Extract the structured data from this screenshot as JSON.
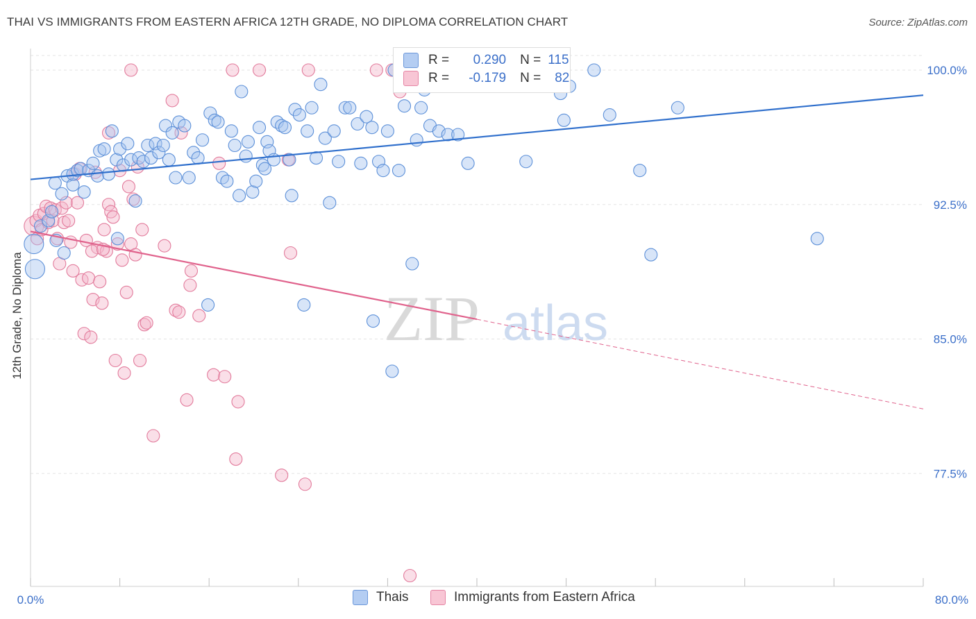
{
  "title": "THAI VS IMMIGRANTS FROM EASTERN AFRICA 12TH GRADE, NO DIPLOMA CORRELATION CHART",
  "source": "Source: ZipAtlas.com",
  "watermark": {
    "zip": "ZIP",
    "atlas": "atlas"
  },
  "legend": {
    "r_label": "R =",
    "n_label": "N =",
    "series": [
      {
        "name": "Thais",
        "r": "0.290",
        "n": "115",
        "fill": "#a9c6ef",
        "stroke": "#5b8fd8"
      },
      {
        "name": "Immigrants from Eastern Africa",
        "r": "-0.179",
        "n": "82",
        "fill": "#f5b8cb",
        "stroke": "#e27a9b"
      }
    ]
  },
  "colors": {
    "blue_line": "#2f6fcc",
    "pink_line": "#e0628c",
    "tick_label": "#3b6fc9",
    "grid": "#e3e3e3"
  },
  "chart_data": {
    "type": "scatter",
    "title": "THAI VS IMMIGRANTS FROM EASTERN AFRICA 12TH GRADE, NO DIPLOMA CORRELATION CHART",
    "xlabel": "",
    "ylabel": "12th Grade, No Diploma",
    "xlim": [
      0,
      80
    ],
    "ylim": [
      71.2,
      101.2
    ],
    "x_tick_labels": [
      "0.0%",
      "80.0%"
    ],
    "y_ticks": [
      77.5,
      85.0,
      92.5,
      100.0
    ],
    "y_tick_labels": [
      "77.5%",
      "85.0%",
      "92.5%",
      "100.0%"
    ],
    "grid": true,
    "legend_position": "top-center",
    "series": [
      {
        "name": "Thais",
        "trend": {
          "x": [
            0,
            80
          ],
          "y": [
            93.9,
            98.6
          ]
        },
        "points": [
          [
            0.3,
            90.3
          ],
          [
            0.4,
            88.9
          ],
          [
            0.9,
            91.3
          ],
          [
            1.6,
            91.6
          ],
          [
            1.9,
            92.1
          ],
          [
            2.2,
            93.7
          ],
          [
            2.3,
            90.5
          ],
          [
            2.8,
            93.1
          ],
          [
            3.0,
            89.8
          ],
          [
            3.3,
            94.1
          ],
          [
            3.8,
            93.6
          ],
          [
            3.8,
            94.2
          ],
          [
            4.2,
            94.4
          ],
          [
            4.5,
            94.5
          ],
          [
            4.8,
            93.2
          ],
          [
            5.2,
            94.4
          ],
          [
            5.6,
            94.8
          ],
          [
            6.0,
            94.1
          ],
          [
            6.2,
            95.5
          ],
          [
            6.6,
            95.6
          ],
          [
            7.0,
            94.2
          ],
          [
            7.3,
            96.6
          ],
          [
            7.7,
            95.0
          ],
          [
            8.0,
            95.6
          ],
          [
            8.3,
            94.7
          ],
          [
            8.7,
            95.9
          ],
          [
            9.0,
            95.0
          ],
          [
            9.4,
            92.7
          ],
          [
            9.7,
            95.1
          ],
          [
            10.1,
            94.9
          ],
          [
            10.5,
            95.8
          ],
          [
            10.8,
            95.1
          ],
          [
            11.2,
            95.9
          ],
          [
            11.5,
            95.4
          ],
          [
            12.1,
            96.9
          ],
          [
            12.4,
            95.0
          ],
          [
            12.7,
            96.5
          ],
          [
            13.0,
            94.0
          ],
          [
            13.3,
            97.1
          ],
          [
            13.8,
            96.9
          ],
          [
            14.2,
            94.0
          ],
          [
            14.6,
            95.4
          ],
          [
            15.0,
            95.1
          ],
          [
            15.4,
            96.1
          ],
          [
            15.9,
            86.9
          ],
          [
            16.1,
            97.6
          ],
          [
            16.5,
            97.2
          ],
          [
            16.8,
            97.1
          ],
          [
            17.2,
            94.0
          ],
          [
            17.6,
            93.8
          ],
          [
            18.0,
            96.6
          ],
          [
            18.3,
            95.8
          ],
          [
            18.7,
            93.0
          ],
          [
            18.9,
            98.8
          ],
          [
            19.3,
            95.2
          ],
          [
            19.5,
            96.0
          ],
          [
            19.9,
            93.2
          ],
          [
            20.2,
            93.8
          ],
          [
            20.5,
            96.8
          ],
          [
            20.8,
            94.7
          ],
          [
            21.2,
            96.0
          ],
          [
            21.4,
            95.5
          ],
          [
            21.8,
            95.0
          ],
          [
            22.1,
            97.1
          ],
          [
            22.5,
            96.9
          ],
          [
            22.8,
            96.8
          ],
          [
            23.2,
            95.0
          ],
          [
            23.4,
            93.0
          ],
          [
            23.7,
            97.8
          ],
          [
            24.1,
            97.5
          ],
          [
            24.5,
            86.9
          ],
          [
            24.8,
            96.6
          ],
          [
            25.2,
            97.9
          ],
          [
            25.6,
            95.1
          ],
          [
            26.0,
            99.2
          ],
          [
            26.4,
            96.2
          ],
          [
            26.8,
            92.6
          ],
          [
            27.2,
            96.6
          ],
          [
            27.6,
            94.9
          ],
          [
            28.2,
            97.9
          ],
          [
            28.6,
            97.9
          ],
          [
            29.3,
            97.0
          ],
          [
            29.6,
            94.8
          ],
          [
            30.1,
            97.4
          ],
          [
            30.6,
            96.8
          ],
          [
            31.2,
            94.9
          ],
          [
            31.6,
            94.4
          ],
          [
            32.0,
            96.6
          ],
          [
            32.6,
            100.0
          ],
          [
            33.0,
            94.4
          ],
          [
            33.5,
            98.0
          ],
          [
            34.2,
            89.2
          ],
          [
            34.6,
            96.1
          ],
          [
            35.3,
            98.9
          ],
          [
            35.8,
            96.9
          ],
          [
            36.6,
            96.6
          ],
          [
            37.4,
            96.4
          ],
          [
            38.3,
            96.4
          ],
          [
            39.2,
            94.8
          ],
          [
            40.5,
            100.0
          ],
          [
            44.4,
            94.9
          ],
          [
            47.5,
            98.7
          ],
          [
            47.8,
            97.2
          ],
          [
            48.3,
            99.1
          ],
          [
            50.5,
            100.0
          ],
          [
            51.9,
            97.5
          ],
          [
            54.6,
            94.4
          ],
          [
            55.6,
            89.7
          ],
          [
            58.0,
            97.9
          ],
          [
            70.5,
            90.6
          ],
          [
            30.7,
            86.0
          ],
          [
            32.4,
            83.2
          ],
          [
            7.8,
            90.6
          ],
          [
            11.9,
            95.8
          ],
          [
            21.0,
            94.5
          ],
          [
            35.0,
            97.9
          ]
        ]
      },
      {
        "name": "Immigrants from Eastern Africa",
        "trend": {
          "x": [
            0,
            40
          ],
          "y": [
            91.0,
            86.1
          ]
        },
        "trend_dashed": {
          "x": [
            40,
            80
          ],
          "y": [
            86.1,
            81.1
          ]
        },
        "points": [
          [
            0.3,
            91.3
          ],
          [
            0.5,
            91.6
          ],
          [
            0.6,
            90.6
          ],
          [
            0.8,
            91.9
          ],
          [
            1.0,
            91.1
          ],
          [
            1.2,
            92.0
          ],
          [
            1.4,
            92.4
          ],
          [
            1.6,
            91.5
          ],
          [
            1.8,
            92.3
          ],
          [
            2.0,
            91.6
          ],
          [
            2.2,
            92.2
          ],
          [
            2.4,
            90.6
          ],
          [
            2.6,
            89.2
          ],
          [
            2.8,
            92.3
          ],
          [
            3.0,
            91.5
          ],
          [
            3.2,
            92.6
          ],
          [
            3.4,
            91.6
          ],
          [
            3.6,
            90.4
          ],
          [
            3.8,
            88.8
          ],
          [
            4.0,
            94.2
          ],
          [
            4.2,
            92.6
          ],
          [
            4.4,
            94.5
          ],
          [
            4.6,
            88.3
          ],
          [
            4.8,
            85.3
          ],
          [
            5.0,
            90.5
          ],
          [
            5.2,
            88.4
          ],
          [
            5.4,
            85.1
          ],
          [
            5.6,
            87.2
          ],
          [
            5.8,
            94.3
          ],
          [
            6.0,
            90.1
          ],
          [
            6.2,
            88.2
          ],
          [
            6.4,
            87.0
          ],
          [
            6.6,
            91.1
          ],
          [
            6.8,
            89.9
          ],
          [
            7.0,
            92.5
          ],
          [
            7.2,
            92.1
          ],
          [
            7.4,
            91.8
          ],
          [
            7.6,
            83.8
          ],
          [
            7.8,
            90.3
          ],
          [
            8.0,
            94.4
          ],
          [
            8.2,
            89.4
          ],
          [
            8.4,
            83.1
          ],
          [
            8.6,
            87.6
          ],
          [
            8.8,
            93.5
          ],
          [
            9.0,
            90.3
          ],
          [
            9.2,
            92.8
          ],
          [
            9.4,
            89.7
          ],
          [
            9.6,
            94.6
          ],
          [
            9.8,
            83.8
          ],
          [
            10.0,
            91.1
          ],
          [
            10.2,
            85.8
          ],
          [
            10.4,
            85.9
          ],
          [
            11.0,
            79.6
          ],
          [
            12.7,
            98.3
          ],
          [
            13.0,
            86.6
          ],
          [
            13.3,
            86.5
          ],
          [
            14.0,
            81.6
          ],
          [
            14.4,
            88.8
          ],
          [
            14.3,
            88.0
          ],
          [
            15.1,
            86.3
          ],
          [
            16.4,
            83.0
          ],
          [
            16.9,
            94.8
          ],
          [
            17.4,
            82.9
          ],
          [
            18.1,
            100.0
          ],
          [
            18.4,
            78.3
          ],
          [
            18.6,
            81.5
          ],
          [
            20.5,
            100.0
          ],
          [
            22.5,
            77.4
          ],
          [
            23.1,
            95.0
          ],
          [
            23.3,
            89.8
          ],
          [
            24.6,
            76.9
          ],
          [
            24.9,
            100.0
          ],
          [
            31.0,
            100.0
          ],
          [
            32.4,
            100.0
          ],
          [
            33.1,
            98.8
          ],
          [
            34.0,
            71.8
          ],
          [
            7.0,
            96.5
          ],
          [
            9.0,
            100.0
          ],
          [
            13.5,
            96.5
          ],
          [
            5.5,
            89.9
          ],
          [
            6.5,
            90.0
          ],
          [
            12.0,
            90.2
          ]
        ]
      }
    ]
  },
  "x_label_left": "0.0%",
  "x_label_right": "80.0%"
}
